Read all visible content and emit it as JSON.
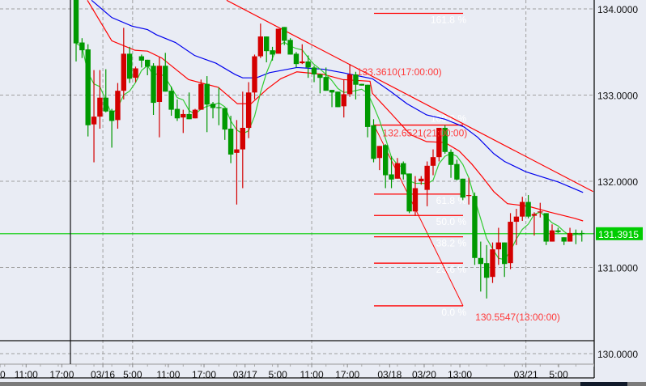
{
  "chart_data": {
    "type": "candlestick",
    "colors": {
      "up": "#d40000",
      "down": "#009900",
      "background": "#e9ecf4",
      "grid": "#a0a0a0",
      "ma_short": "#33cc33",
      "ma_mid": "#ff0000",
      "ma_long": "#0000ee",
      "trendline": "#ff0000",
      "fib": "#ff0000",
      "current_price": "#00cc00"
    },
    "ylim": [
      129.9,
      134.1
    ],
    "y_ticks": [
      "134.0000",
      "133.0000",
      "132.0000",
      "131.0000",
      "130.0000"
    ],
    "y_tick_values": [
      134,
      133,
      132,
      131,
      130
    ],
    "grid": true,
    "x_ticks": [
      {
        "label": "0",
        "bar": -12.8,
        "grid": false
      },
      {
        "label": "11:00",
        "bar": -8.4,
        "grid": false
      },
      {
        "label": "17:00",
        "bar": -2.4,
        "grid": false
      },
      {
        "label": "03/16",
        "bar": 4.5,
        "grid": true
      },
      {
        "label": "5:00",
        "bar": 9.5,
        "grid": true
      },
      {
        "label": "11:00",
        "bar": 15.5,
        "grid": false
      },
      {
        "label": "17:00",
        "bar": 21.5,
        "grid": false
      },
      {
        "label": "03/17",
        "bar": 28.4,
        "grid": false
      },
      {
        "label": "5:00",
        "bar": 33.9,
        "grid": false
      },
      {
        "label": "11:00",
        "bar": 39.6,
        "grid": true
      },
      {
        "label": "17:00",
        "bar": 45.6,
        "grid": false
      },
      {
        "label": "03/18",
        "bar": 52.7,
        "grid": false
      },
      {
        "label": "03/20",
        "bar": 58.5,
        "grid": false
      },
      {
        "label": "13:00",
        "bar": 64.5,
        "grid": false
      },
      {
        "label": "03/21",
        "bar": 75.6,
        "grid": true
      },
      {
        "label": "5:00",
        "bar": 81.1,
        "grid": false
      }
    ],
    "ohlc": [
      [
        134.13,
        134.15,
        133.39,
        133.6
      ],
      [
        133.61,
        133.66,
        133.43,
        133.52
      ],
      [
        133.53,
        133.59,
        132.52,
        132.65
      ],
      [
        132.66,
        133.29,
        132.22,
        132.75
      ],
      [
        132.75,
        133.29,
        132.61,
        132.97
      ],
      [
        132.97,
        133.3,
        132.8,
        132.81
      ],
      [
        132.82,
        132.84,
        132.39,
        132.7
      ],
      [
        132.71,
        133.14,
        132.61,
        133.05
      ],
      [
        133.05,
        133.78,
        132.95,
        133.48
      ],
      [
        133.48,
        133.56,
        133.14,
        133.19
      ],
      [
        133.2,
        133.33,
        133.15,
        133.31
      ],
      [
        133.45,
        133.47,
        133.32,
        133.4
      ],
      [
        133.41,
        133.41,
        133.23,
        133.33
      ],
      [
        133.34,
        133.37,
        132.77,
        132.91
      ],
      [
        132.92,
        133.44,
        132.51,
        133.34
      ],
      [
        133.34,
        133.49,
        133.04,
        133.04
      ],
      [
        133.05,
        133.1,
        132.76,
        132.83
      ],
      [
        132.84,
        132.95,
        132.7,
        132.73
      ],
      [
        132.74,
        132.83,
        132.56,
        132.78
      ],
      [
        132.78,
        133.03,
        132.72,
        132.72
      ],
      [
        132.73,
        132.84,
        132.73,
        132.83
      ],
      [
        132.83,
        133.18,
        132.83,
        133.13
      ],
      [
        133.13,
        133.22,
        132.57,
        132.89
      ],
      [
        132.9,
        132.92,
        132.73,
        132.85
      ],
      [
        132.86,
        133.09,
        132.65,
        132.85
      ],
      [
        132.85,
        132.85,
        132.48,
        132.6
      ],
      [
        132.61,
        132.76,
        132.21,
        132.31
      ],
      [
        132.33,
        132.71,
        131.73,
        132.37
      ],
      [
        132.37,
        133.04,
        131.92,
        132.62
      ],
      [
        132.62,
        133.15,
        132.5,
        133.03
      ],
      [
        133.03,
        133.47,
        132.95,
        133.45
      ],
      [
        133.45,
        133.83,
        133.43,
        133.68
      ],
      [
        133.68,
        133.68,
        133.38,
        133.51
      ],
      [
        133.52,
        133.56,
        133.4,
        133.47
      ],
      [
        133.48,
        133.77,
        133.48,
        133.77
      ],
      [
        133.79,
        133.79,
        133.58,
        133.63
      ],
      [
        133.64,
        133.66,
        133.47,
        133.47
      ],
      [
        133.48,
        133.5,
        133.32,
        133.36
      ],
      [
        133.37,
        133.59,
        133.36,
        133.39
      ],
      [
        133.39,
        133.46,
        133.2,
        133.32
      ],
      [
        133.32,
        133.34,
        133.15,
        133.24
      ],
      [
        133.24,
        133.25,
        133.02,
        133.2
      ],
      [
        133.21,
        133.32,
        133.05,
        133.05
      ],
      [
        133.06,
        133.06,
        132.86,
        133.03
      ],
      [
        133.04,
        133.04,
        132.86,
        132.86
      ],
      [
        132.87,
        133.18,
        132.74,
        133.01
      ],
      [
        133.01,
        133.36,
        132.98,
        133.24
      ],
      [
        133.24,
        133.27,
        132.95,
        133.12
      ],
      [
        133.13,
        133.13,
        133.11,
        133.11
      ],
      [
        133.12,
        133.12,
        132.51,
        132.63
      ],
      [
        132.65,
        132.72,
        132.22,
        132.26
      ],
      [
        132.27,
        132.41,
        132.13,
        132.41
      ],
      [
        132.42,
        132.43,
        131.92,
        132.07
      ],
      [
        132.08,
        132.29,
        131.92,
        132.02
      ],
      [
        132.03,
        132.27,
        132.03,
        132.21
      ],
      [
        132.21,
        132.23,
        132.02,
        132.08
      ],
      [
        132.09,
        132.09,
        131.63,
        131.65
      ],
      [
        131.65,
        132.06,
        131.6,
        131.92
      ],
      [
        132.0,
        132.06,
        131.96,
        132.03
      ],
      [
        131.9,
        132.23,
        131.71,
        132.18
      ],
      [
        132.18,
        132.37,
        132.07,
        132.28
      ],
      [
        132.28,
        132.62,
        132.23,
        132.62
      ],
      [
        132.62,
        132.65,
        132.32,
        132.34
      ],
      [
        132.34,
        132.37,
        132.04,
        132.19
      ],
      [
        132.2,
        132.25,
        132.01,
        132.02
      ],
      [
        132.03,
        132.03,
        131.78,
        131.81
      ],
      [
        131.83,
        132.04,
        131.73,
        131.84
      ],
      [
        131.83,
        131.87,
        131.03,
        131.11
      ],
      [
        131.11,
        131.3,
        130.72,
        131.04
      ],
      [
        131.05,
        131.26,
        130.64,
        130.88
      ],
      [
        130.89,
        131.29,
        130.82,
        131.21
      ],
      [
        131.21,
        131.46,
        131.03,
        131.29
      ],
      [
        131.29,
        131.29,
        130.89,
        131.04
      ],
      [
        131.05,
        131.63,
        130.98,
        131.53
      ],
      [
        131.53,
        131.68,
        131.26,
        131.59
      ],
      [
        131.59,
        131.82,
        131.54,
        131.76
      ],
      [
        131.76,
        131.84,
        131.57,
        131.59
      ],
      [
        131.6,
        131.64,
        131.37,
        131.62
      ],
      [
        131.64,
        131.75,
        131.58,
        131.65
      ],
      [
        131.63,
        131.63,
        131.26,
        131.3
      ],
      [
        131.3,
        131.5,
        131.3,
        131.43
      ],
      [
        131.43,
        131.46,
        131.4,
        131.41
      ],
      [
        131.35,
        131.35,
        131.26,
        131.3
      ],
      [
        131.3,
        131.46,
        131.3,
        131.4
      ],
      [
        131.4,
        131.44,
        131.27,
        131.39
      ],
      [
        131.4,
        131.43,
        131.3,
        131.39
      ]
    ],
    "ma_mid": [
      [
        1.9,
        134.1
      ],
      [
        6,
        133.63
      ],
      [
        9.9,
        133.52
      ],
      [
        12,
        133.51
      ],
      [
        14.4,
        133.43
      ],
      [
        18.9,
        133.18
      ],
      [
        23.9,
        133.09
      ],
      [
        27.1,
        132.9
      ],
      [
        29.4,
        132.9
      ],
      [
        32.1,
        133.07
      ],
      [
        34.4,
        133.19
      ],
      [
        37.1,
        133.27
      ],
      [
        41.6,
        133.24
      ],
      [
        44.8,
        133.18
      ],
      [
        49.4,
        133.16
      ],
      [
        49.8,
        133.02
      ],
      [
        52.9,
        132.79
      ],
      [
        56.2,
        132.54
      ],
      [
        58.9,
        132.46
      ],
      [
        62,
        132.45
      ],
      [
        64.4,
        132.35
      ],
      [
        66.5,
        132.2
      ],
      [
        68.4,
        132.04
      ],
      [
        70.2,
        131.88
      ],
      [
        72.5,
        131.74
      ],
      [
        76,
        131.71
      ],
      [
        79.7,
        131.64
      ],
      [
        83.8,
        131.57
      ],
      [
        85.2,
        131.54
      ]
    ],
    "ma_long": [
      [
        2.6,
        134.1
      ],
      [
        6,
        133.9
      ],
      [
        9.4,
        133.8
      ],
      [
        12,
        133.76
      ],
      [
        13.5,
        133.7
      ],
      [
        16.7,
        133.61
      ],
      [
        19.9,
        133.46
      ],
      [
        23.5,
        133.37
      ],
      [
        26.7,
        133.24
      ],
      [
        28,
        133.2
      ],
      [
        30.3,
        133.2
      ],
      [
        32.5,
        133.26
      ],
      [
        37.1,
        133.32
      ],
      [
        41.6,
        133.3
      ],
      [
        44.8,
        133.26
      ],
      [
        49.8,
        133.19
      ],
      [
        52.9,
        133.04
      ],
      [
        55.6,
        132.9
      ],
      [
        58.9,
        132.77
      ],
      [
        62,
        132.72
      ],
      [
        65.2,
        132.63
      ],
      [
        67.5,
        132.51
      ],
      [
        70.2,
        132.32
      ],
      [
        72,
        132.23
      ],
      [
        75.6,
        132.11
      ],
      [
        81.1,
        131.99
      ],
      [
        85.2,
        131.87
      ]
    ],
    "ma_short_period": 5,
    "trendline": [
      [
        25.3,
        134.1
      ],
      [
        86.9,
        131.88
      ]
    ],
    "fibonacci": {
      "high": 132.6521,
      "low": 130.5547,
      "levels": [
        {
          "label": "161.8 %",
          "price": 133.9485
        },
        {
          "label": "100.0 %",
          "price": 132.6521
        },
        {
          "label": "61.8 %",
          "price": 131.8509
        },
        {
          "label": "50.0 %",
          "price": 131.6034
        },
        {
          "label": "38.2 %",
          "price": 131.3559
        },
        {
          "label": "23.6 %",
          "price": 131.0497
        },
        {
          "label": "0.0 %",
          "price": 130.5547
        }
      ]
    },
    "annotations": [
      {
        "text": "133.3610(17:00:00)",
        "bar": 47.2,
        "price": 133.361
      },
      {
        "text": "132.6521(21:00:00)",
        "bar": 51.5,
        "price": 132.6521
      },
      {
        "text": "130.5547(13:00:00)",
        "bar": 67.1,
        "price": 130.5547
      }
    ],
    "current_price": {
      "value": 131.3915,
      "label": "131.3915"
    }
  }
}
